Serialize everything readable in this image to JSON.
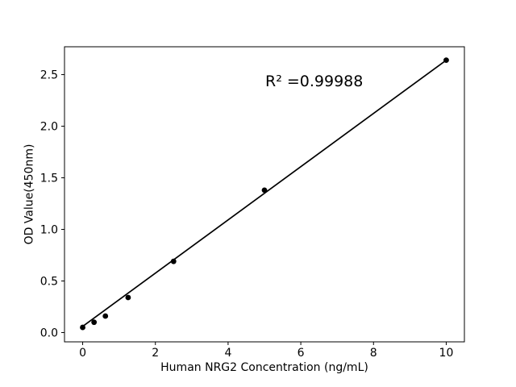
{
  "chart_data": {
    "type": "scatter",
    "title": "",
    "xlabel": "Human NRG2 Concentration (ng/mL)",
    "ylabel": "OD Value(450nm)",
    "x": [
      0,
      0.313,
      0.625,
      1.25,
      2.5,
      5,
      10
    ],
    "y": [
      0.05,
      0.1,
      0.16,
      0.34,
      0.69,
      1.38,
      2.64
    ],
    "fit_line": {
      "x": [
        0,
        10
      ],
      "y": [
        0.06,
        2.64
      ]
    },
    "annotation": {
      "text": "R² =0.99988",
      "r_squared": 0.99988
    },
    "xlim": [
      -0.5,
      10.5
    ],
    "ylim": [
      -0.09,
      2.77
    ],
    "x_ticks": [
      0,
      2,
      4,
      6,
      8,
      10
    ],
    "x_tick_labels": [
      "0",
      "2",
      "4",
      "6",
      "8",
      "10"
    ],
    "y_ticks": [
      0.0,
      0.5,
      1.0,
      1.5,
      2.0,
      2.5
    ],
    "y_tick_labels": [
      "0.0",
      "0.5",
      "1.0",
      "1.5",
      "2.0",
      "2.5"
    ],
    "grid": false,
    "marker": "circle",
    "colors": {
      "marker": "#000000",
      "line": "#000000",
      "axis": "#000000",
      "text": "#000000",
      "background": "#ffffff"
    }
  }
}
